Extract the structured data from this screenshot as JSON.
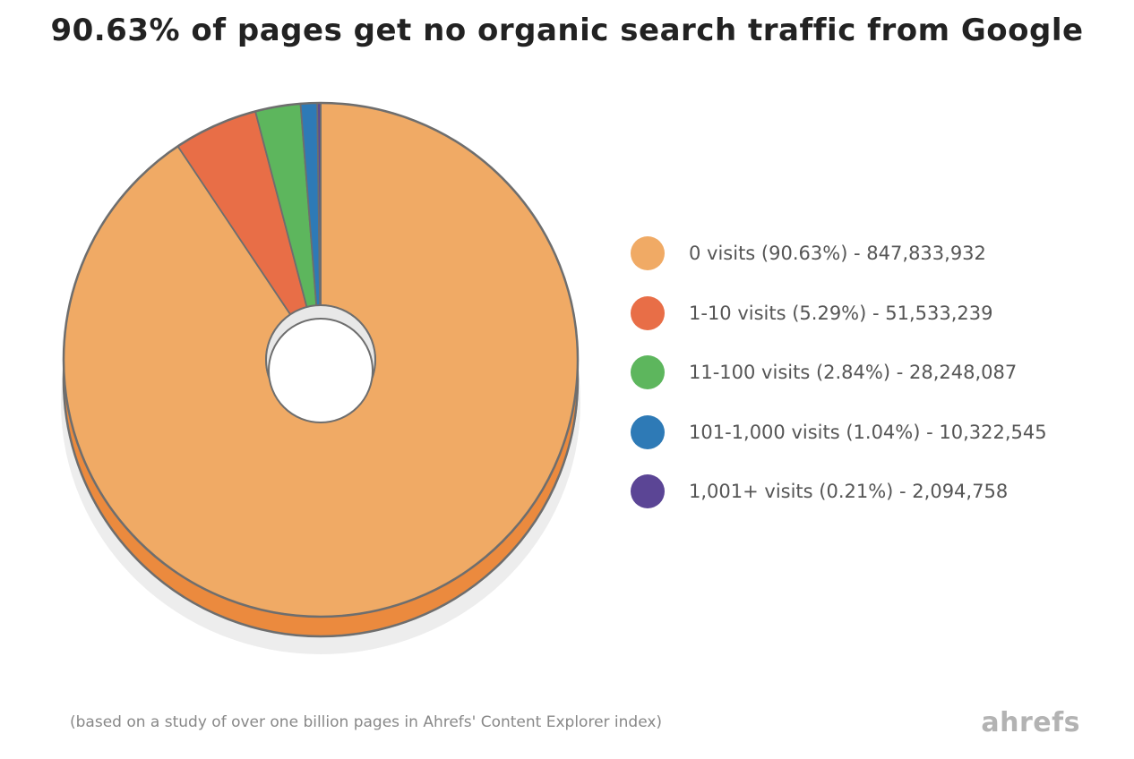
{
  "chart_data": {
    "type": "pie",
    "title": "90.63% of pages get no organic search traffic from Google",
    "slices": [
      {
        "label": "0 visits (90.63%) - 847,833,932",
        "percent": 90.63,
        "count": 847833932,
        "color": "#F0AA65",
        "side_color": "#EB8A3E"
      },
      {
        "label": "1-10 visits (5.29%) - 51,533,239",
        "percent": 5.29,
        "count": 51533239,
        "color": "#E86E47",
        "side_color": "#C8502D"
      },
      {
        "label": "11-100 visits (2.84%) - 28,248,087",
        "percent": 2.84,
        "count": 28248087,
        "color": "#5DB65D",
        "side_color": "#3D8C3D"
      },
      {
        "label": "101-1,000 visits (1.04%) - 10,322,545",
        "percent": 1.04,
        "count": 10322545,
        "color": "#2E7AB6",
        "side_color": "#1F5A88"
      },
      {
        "label": "1,001+ visits (0.21%) - 2,094,758",
        "percent": 0.21,
        "count": 2094758,
        "color": "#5B4595",
        "side_color": "#3F2E6E"
      }
    ],
    "legend_placement": "right"
  },
  "footnote": "(based on a study of over one billion pages in Ahrefs' Content Explorer index)",
  "brand": "ahrefs",
  "colors": {
    "outline": "#6E6E6E",
    "shadow": "#EDEDED"
  }
}
